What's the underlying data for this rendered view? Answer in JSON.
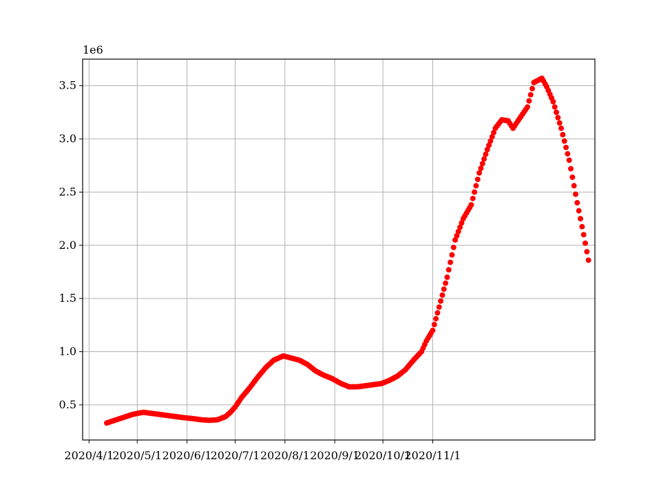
{
  "chart_data": {
    "type": "scatter",
    "title": "",
    "xlabel": "",
    "ylabel": "",
    "y_offset_label": "1e6",
    "marker_color": "#ff0000",
    "grid": true,
    "x_ticks": [
      "2020/4/1",
      "2020/5/1",
      "2020/6/1",
      "2020/7/1",
      "2020/8/1",
      "2020/9/1",
      "2020/10/1",
      "2020/11/1"
    ],
    "y_ticks": [
      "0.5",
      "1.0",
      "1.5",
      "2.0",
      "2.5",
      "3.0",
      "3.5"
    ],
    "ylim": [
      0.17,
      3.75
    ],
    "xlim": [
      "2020/3/28",
      "2021/2/10"
    ],
    "series": [
      {
        "anchors": [
          [
            "2020-04-12",
            0.33
          ],
          [
            "2020-04-16",
            0.35
          ],
          [
            "2020-04-20",
            0.37
          ],
          [
            "2020-04-24",
            0.39
          ],
          [
            "2020-04-28",
            0.41
          ],
          [
            "2020-05-01",
            0.42
          ],
          [
            "2020-05-05",
            0.43
          ],
          [
            "2020-05-10",
            0.42
          ],
          [
            "2020-05-15",
            0.41
          ],
          [
            "2020-05-20",
            0.4
          ],
          [
            "2020-05-25",
            0.39
          ],
          [
            "2020-05-30",
            0.38
          ],
          [
            "2020-06-05",
            0.37
          ],
          [
            "2020-06-10",
            0.36
          ],
          [
            "2020-06-15",
            0.355
          ],
          [
            "2020-06-20",
            0.36
          ],
          [
            "2020-06-25",
            0.39
          ],
          [
            "2020-06-28",
            0.43
          ],
          [
            "2020-07-01",
            0.48
          ],
          [
            "2020-07-05",
            0.57
          ],
          [
            "2020-07-10",
            0.66
          ],
          [
            "2020-07-15",
            0.76
          ],
          [
            "2020-07-20",
            0.85
          ],
          [
            "2020-07-25",
            0.92
          ],
          [
            "2020-07-31",
            0.96
          ],
          [
            "2020-08-05",
            0.94
          ],
          [
            "2020-08-10",
            0.92
          ],
          [
            "2020-08-15",
            0.88
          ],
          [
            "2020-08-20",
            0.82
          ],
          [
            "2020-08-25",
            0.78
          ],
          [
            "2020-08-30",
            0.75
          ],
          [
            "2020-09-05",
            0.7
          ],
          [
            "2020-09-10",
            0.67
          ],
          [
            "2020-09-15",
            0.67
          ],
          [
            "2020-09-20",
            0.68
          ],
          [
            "2020-09-25",
            0.69
          ],
          [
            "2020-09-30",
            0.7
          ],
          [
            "2020-10-05",
            0.73
          ],
          [
            "2020-10-10",
            0.77
          ],
          [
            "2020-10-15",
            0.83
          ],
          [
            "2020-10-20",
            0.92
          ],
          [
            "2020-10-25",
            1.0
          ],
          [
            "2020-10-28",
            1.1
          ],
          [
            "2020-11-01",
            1.2
          ],
          [
            "2020-11-05",
            1.42
          ],
          [
            "2020-11-10",
            1.7
          ],
          [
            "2020-11-15",
            2.05
          ],
          [
            "2020-11-20",
            2.25
          ],
          [
            "2020-11-25",
            2.38
          ],
          [
            "2020-11-30",
            2.68
          ],
          [
            "2020-12-05",
            2.9
          ],
          [
            "2020-12-10",
            3.1
          ],
          [
            "2020-12-14",
            3.18
          ],
          [
            "2020-12-18",
            3.17
          ],
          [
            "2020-12-21",
            3.1
          ],
          [
            "2020-12-25",
            3.19
          ],
          [
            "2020-12-30",
            3.3
          ],
          [
            "2021-01-03",
            3.53
          ],
          [
            "2021-01-08",
            3.57
          ],
          [
            "2021-01-11",
            3.49
          ],
          [
            "2021-01-15",
            3.35
          ],
          [
            "2021-01-20",
            3.1
          ],
          [
            "2021-01-25",
            2.8
          ],
          [
            "2021-01-30",
            2.4
          ],
          [
            "2021-02-03",
            2.1
          ],
          [
            "2021-02-06",
            1.86
          ]
        ]
      }
    ]
  }
}
